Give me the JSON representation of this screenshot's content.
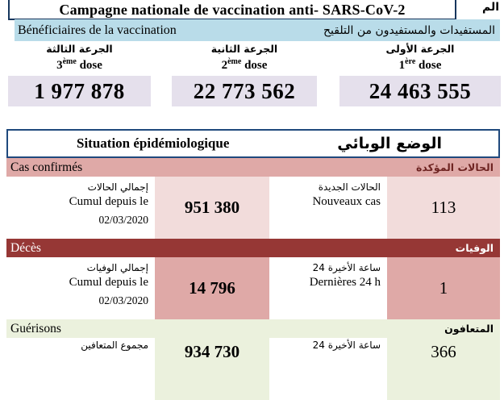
{
  "title": {
    "text": "Campagne nationale de vaccination anti- SARS-CoV-2",
    "arabic_fragment": "الم"
  },
  "vaccination": {
    "header_fr": "Bénéficiaires de la vaccination",
    "header_ar": "المستفيدات والمستفيدون من التلقيح",
    "doses": [
      {
        "label_ar": "الجرعة الثالثة",
        "num": "3",
        "sup": "ème",
        "word": " dose",
        "value": "1 977 878"
      },
      {
        "label_ar": "الجرعة الثانية",
        "num": "2",
        "sup": "ème",
        "word": " dose",
        "value": "22 773 562"
      },
      {
        "label_ar": "الجرعة الأولى",
        "num": "1",
        "sup": "ère",
        "word": " dose",
        "value": "24 463 555"
      }
    ]
  },
  "situation": {
    "header_fr": "Situation épidémiologique",
    "header_ar": "الوضع الوبائي",
    "sections": [
      {
        "bar_fr": "Cas confirmés",
        "bar_ar": "الحالات المؤكدة",
        "left_label_ar": "إجمالي الحالات",
        "left_label_fr": "Cumul depuis le",
        "left_label_date": "02/03/2020",
        "left_value": "951 380",
        "right_label_ar": "الحالات الجديدة",
        "right_label_fr": "Nouveaux cas",
        "right_value": "113"
      },
      {
        "bar_fr": "Décès",
        "bar_ar": "الوفيات",
        "left_label_ar": "إجمالي الوفيات",
        "left_label_fr": "Cumul depuis le",
        "left_label_date": "02/03/2020",
        "left_value": "14 796",
        "right_label_ar": "24 ساعة الأخيرة",
        "right_label_fr": "Dernières 24 h",
        "right_value": "1"
      },
      {
        "bar_fr": "Guérisons",
        "bar_ar": "المتعافون",
        "left_label_ar": "مجموع المتعافين",
        "left_label_fr": "",
        "left_label_date": "",
        "left_value": "934 730",
        "right_label_ar": "24 ساعة الأخيرة",
        "right_label_fr": "",
        "right_value": "366"
      }
    ]
  },
  "colors": {
    "navy_border": "#17365d",
    "blue_border": "#1f497d",
    "light_blue": "#b9dce9",
    "lavender": "#e5e0ec",
    "rose": "#dfa9a7",
    "light_pink": "#f2dcdb",
    "dark_red": "#963735",
    "maroon_text": "#6e2422",
    "light_green": "#ebf1dd"
  }
}
